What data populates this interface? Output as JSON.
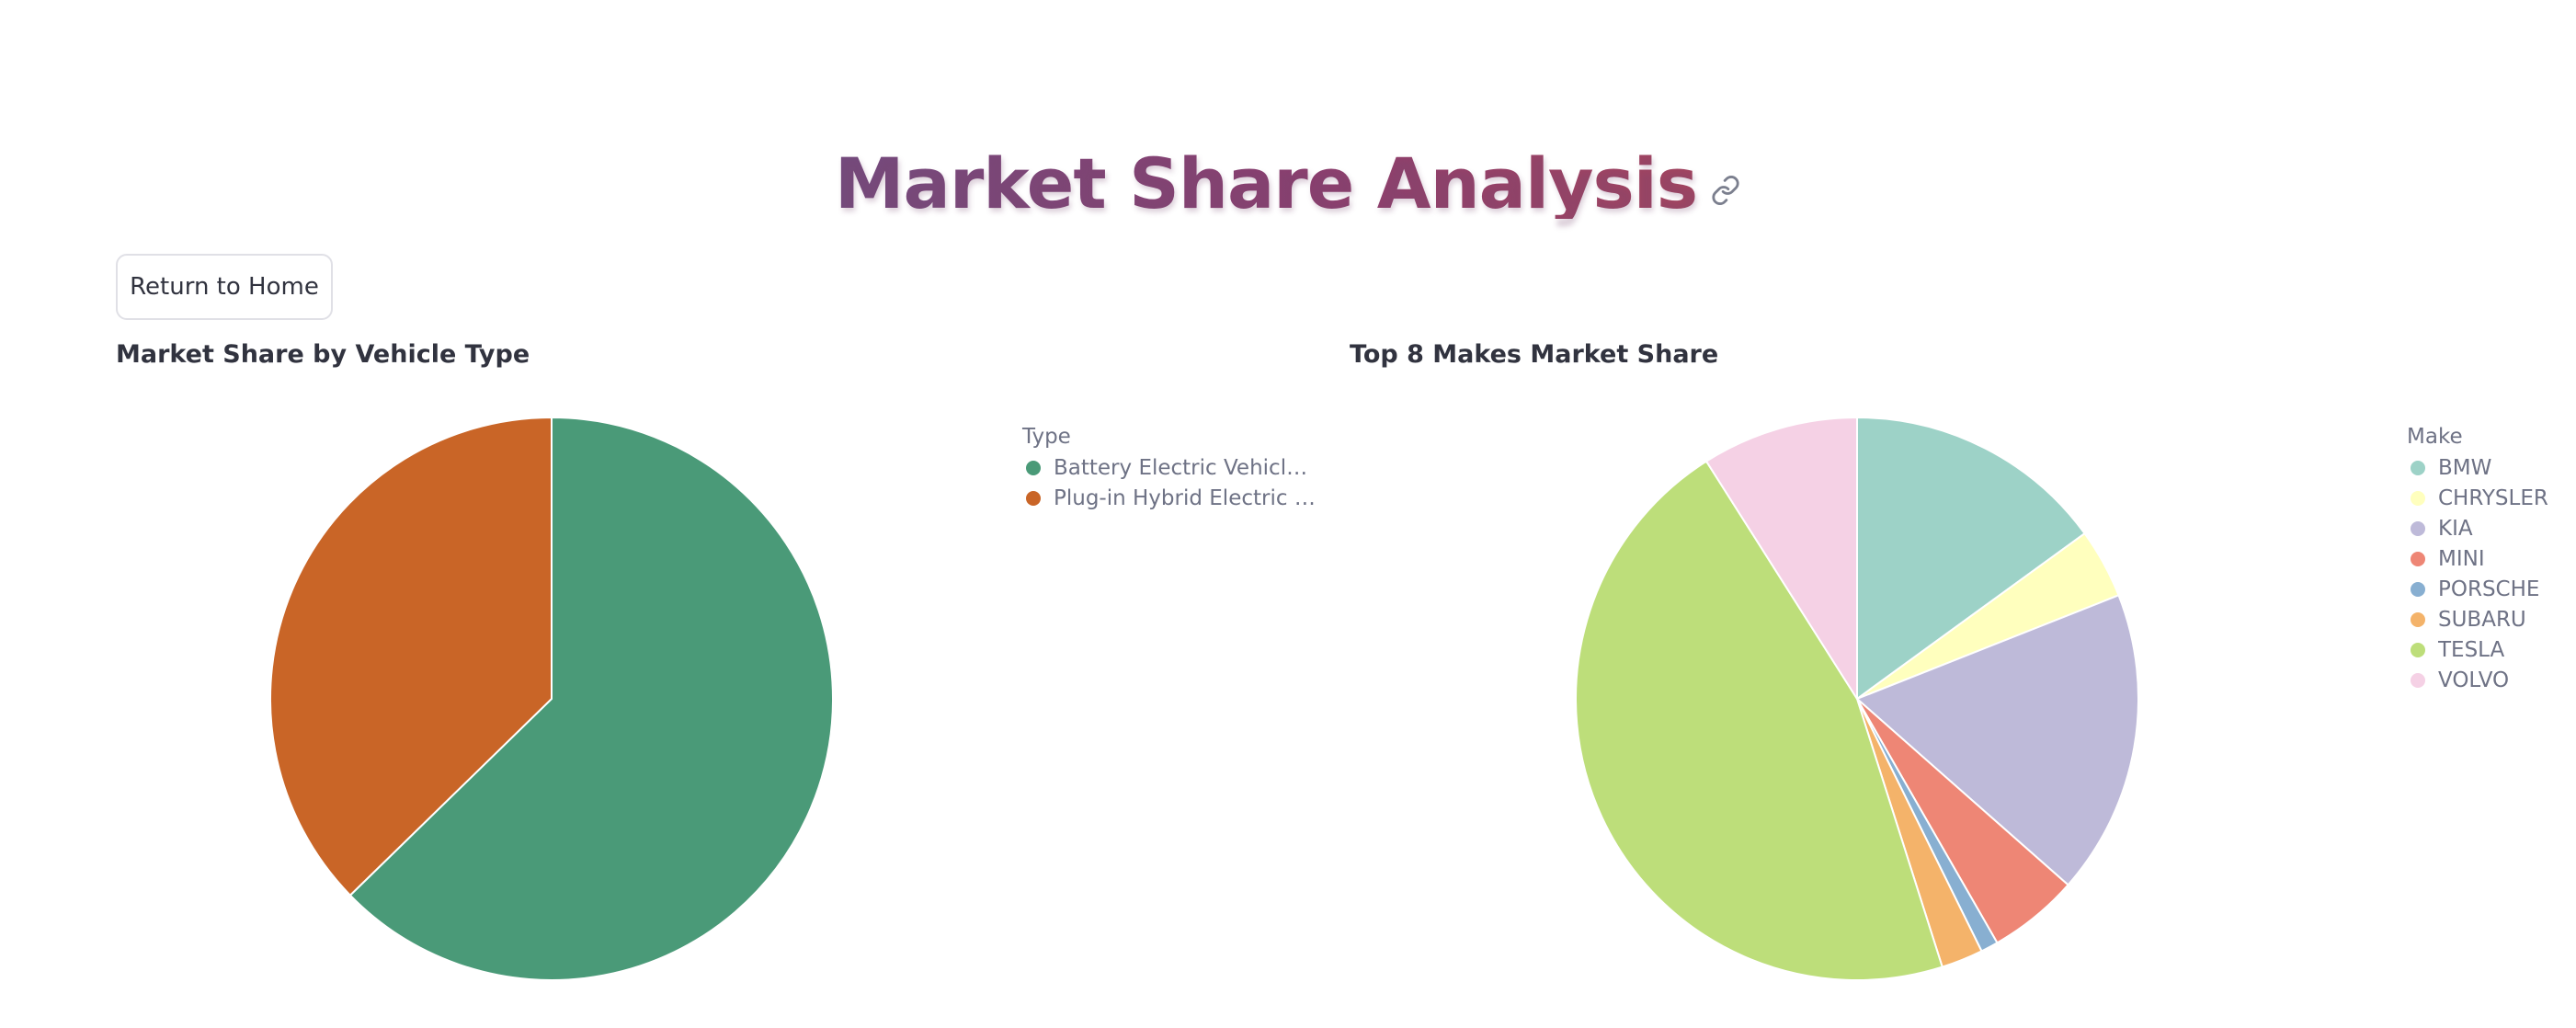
{
  "page": {
    "title": "Market Share Analysis",
    "link_icon": "link-icon"
  },
  "home_button": {
    "label": "Return to Home"
  },
  "chart_data": [
    {
      "type": "pie",
      "title": "Market Share by Vehicle Type",
      "legend_title": "Type",
      "legend_placement": "right",
      "categories": [
        "Battery Electric Vehicle (…",
        "Plug-in Hybrid Electric V…"
      ],
      "values": [
        62.7,
        37.3
      ],
      "colors": [
        "#4a9a78",
        "#c96527"
      ]
    },
    {
      "type": "pie",
      "title": "Top 8 Makes Market Share",
      "legend_title": "Make",
      "legend_placement": "right",
      "categories": [
        "BMW",
        "CHRYSLER",
        "KIA",
        "MINI",
        "PORSCHE",
        "SUBARU",
        "TESLA",
        "VOLVO"
      ],
      "values": [
        15.0,
        4.0,
        17.5,
        5.2,
        1.0,
        2.4,
        45.9,
        9.0
      ],
      "colors": [
        "#9dd2c7",
        "#ffffbe",
        "#bebad9",
        "#ee8675",
        "#88afd1",
        "#f4b36a",
        "#bdde7a",
        "#f5d1e5"
      ]
    }
  ]
}
